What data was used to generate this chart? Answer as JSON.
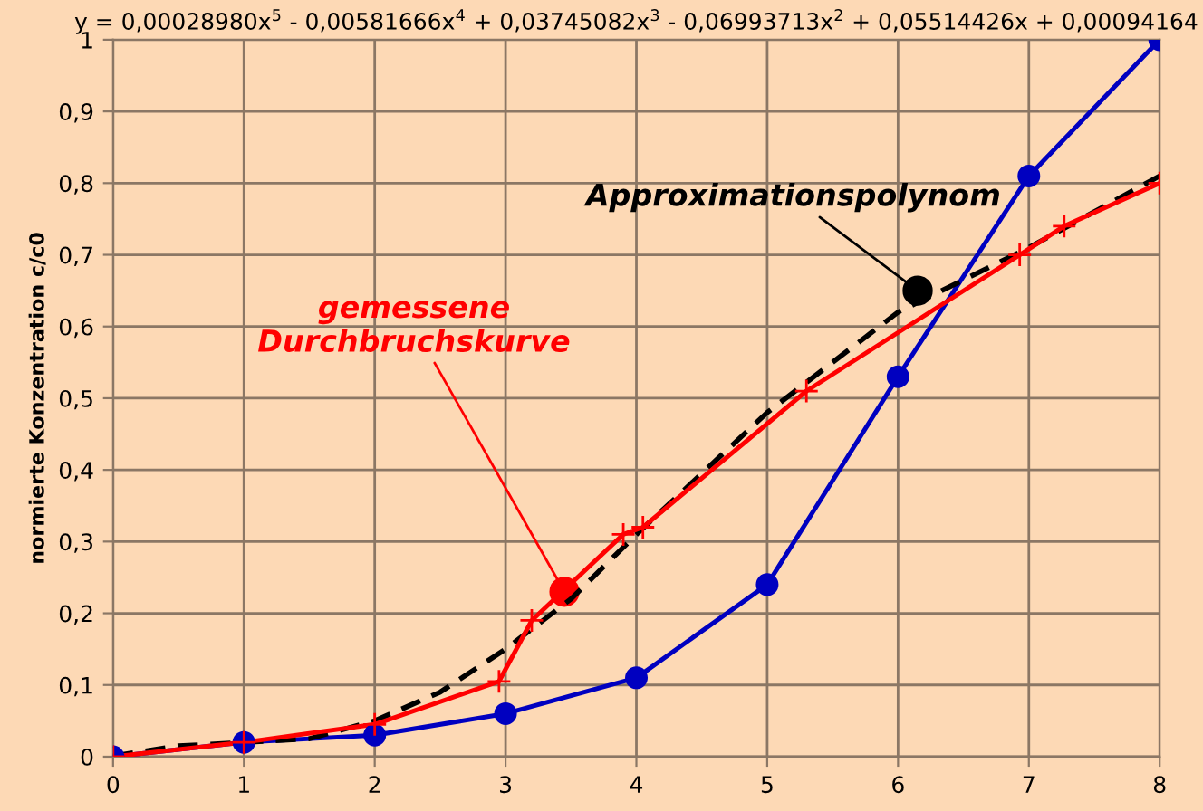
{
  "chart_data": {
    "type": "line",
    "title": "y = 0,00028980x$^{5}$ - 0,00581666x$^{4}$ + 0,03745082x$^{3}$ - 0,06993713x$^{2}$ + 0,05514426x + 0,00094164",
    "ylabel": "normierte Konzentration c/c0",
    "series": [
      {
        "color": "#0000c0",
        "marker": "circle",
        "line_style": "solid",
        "x": [
          0,
          1,
          2,
          3,
          4,
          5,
          6,
          7,
          8
        ],
        "values": [
          0,
          0.02,
          0.03,
          0.06,
          0.11,
          0.24,
          0.53,
          0.81,
          1.0
        ]
      },
      {
        "color": "#000000",
        "marker": "none",
        "line_style": "dashed",
        "x": [
          0,
          0.5,
          1,
          1.5,
          2,
          2.5,
          3,
          3.5,
          4,
          5,
          6,
          7,
          8
        ],
        "values": [
          0.001,
          0.015,
          0.02,
          0.025,
          0.05,
          0.09,
          0.15,
          0.22,
          0.31,
          0.48,
          0.62,
          0.71,
          0.81
        ]
      },
      {
        "color": "#ff0000",
        "marker": "cross",
        "line_style": "solid",
        "x": [
          0,
          1,
          2,
          2.95,
          3.2,
          3.9,
          4.05,
          5.3,
          6.93,
          7.27,
          8
        ],
        "values": [
          0,
          0.02,
          0.045,
          0.105,
          0.19,
          0.31,
          0.32,
          0.51,
          0.7,
          0.74,
          0.8
        ]
      }
    ],
    "annotations": [
      {
        "text": "gemessene\nDurchbruchskurve",
        "x": 3.45,
        "y": 0.23
      },
      {
        "text": "Approximationspolynom",
        "x": 6.15,
        "y": 0.65
      }
    ],
    "xlim": [
      0,
      8
    ],
    "xticks": [
      0,
      1,
      2,
      3,
      4,
      5,
      6,
      7,
      8
    ],
    "ylim": [
      0,
      1
    ],
    "yticks": [
      0,
      {
        "value": 0.1,
        "label": "0,1"
      },
      {
        "value": 0.2,
        "label": "0,2"
      },
      {
        "value": 0.3,
        "label": "0,3"
      },
      {
        "value": 0.4,
        "label": "0,4"
      },
      {
        "value": 0.5,
        "label": "0,5"
      },
      {
        "value": 0.6,
        "label": "0,6"
      },
      {
        "value": 0.7,
        "label": "0,7"
      },
      {
        "value": 0.8,
        "label": "0,8"
      },
      {
        "value": 0.9,
        "label": "0,9"
      },
      1
    ],
    "grid": true,
    "legend": false
  }
}
